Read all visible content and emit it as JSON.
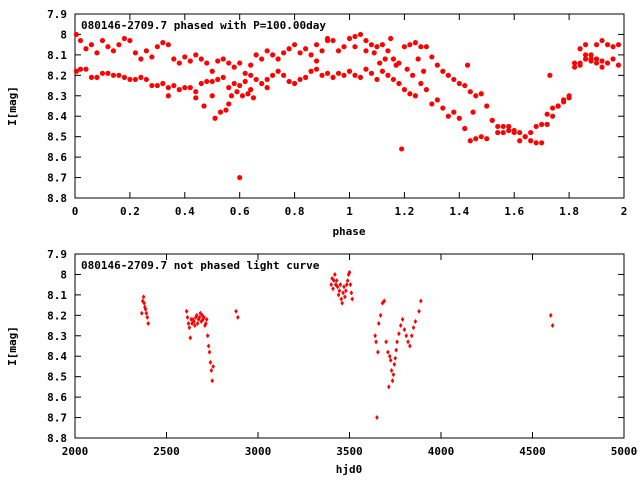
{
  "colors": {
    "marker": "#ff0000",
    "axis": "#000000"
  },
  "chart_data": [
    {
      "type": "scatter",
      "title": "080146-2709.7 phased with P=100.00day",
      "xlabel": "phase",
      "ylabel": "I[mag]",
      "xlim": [
        0,
        2
      ],
      "ylim": [
        7.9,
        8.8
      ],
      "y_inverted": true,
      "grid": false,
      "marker": "filled-circle",
      "x_ticks": [
        "0",
        "0.2",
        "0.4",
        "0.6",
        "0.8",
        "1",
        "1.2",
        "1.4",
        "1.6",
        "1.8",
        "2"
      ],
      "y_ticks": [
        "7.9",
        "8",
        "8.1",
        "8.2",
        "8.3",
        "8.4",
        "8.5",
        "8.6",
        "8.7",
        "8.8"
      ],
      "points": [
        [
          0.005,
          8.18
        ],
        [
          0.02,
          8.17
        ],
        [
          0.04,
          8.17
        ],
        [
          0.06,
          8.21
        ],
        [
          0.08,
          8.21
        ],
        [
          0.1,
          8.19
        ],
        [
          0.12,
          8.19
        ],
        [
          0.14,
          8.2
        ],
        [
          0.16,
          8.2
        ],
        [
          0.18,
          8.21
        ],
        [
          0.2,
          8.22
        ],
        [
          0.22,
          8.22
        ],
        [
          0.24,
          8.21
        ],
        [
          0.26,
          8.22
        ],
        [
          0.28,
          8.25
        ],
        [
          0.3,
          8.25
        ],
        [
          0.32,
          8.24
        ],
        [
          0.34,
          8.26
        ],
        [
          0.36,
          8.25
        ],
        [
          0.38,
          8.27
        ],
        [
          0.4,
          8.26
        ],
        [
          0.42,
          8.26
        ],
        [
          0.44,
          8.28
        ],
        [
          0.46,
          8.24
        ],
        [
          0.48,
          8.23
        ],
        [
          0.5,
          8.23
        ],
        [
          0.52,
          8.22
        ],
        [
          0.54,
          8.21
        ],
        [
          0.56,
          8.26
        ],
        [
          0.58,
          8.24
        ],
        [
          0.6,
          8.25
        ],
        [
          0.62,
          8.23
        ],
        [
          0.64,
          8.2
        ],
        [
          0.66,
          8.22
        ],
        [
          0.68,
          8.24
        ],
        [
          0.7,
          8.26
        ],
        [
          0.72,
          8.2
        ],
        [
          0.74,
          8.18
        ],
        [
          0.76,
          8.2
        ],
        [
          0.78,
          8.23
        ],
        [
          0.8,
          8.24
        ],
        [
          0.82,
          8.22
        ],
        [
          0.84,
          8.21
        ],
        [
          0.86,
          8.18
        ],
        [
          0.88,
          8.17
        ],
        [
          0.9,
          8.2
        ],
        [
          0.92,
          8.19
        ],
        [
          0.94,
          8.21
        ],
        [
          0.96,
          8.19
        ],
        [
          0.98,
          8.2
        ],
        [
          0.005,
          8.0
        ],
        [
          0.02,
          8.03
        ],
        [
          0.04,
          8.07
        ],
        [
          0.06,
          8.05
        ],
        [
          0.08,
          8.09
        ],
        [
          0.1,
          8.03
        ],
        [
          0.12,
          8.06
        ],
        [
          0.14,
          8.08
        ],
        [
          0.16,
          8.05
        ],
        [
          0.18,
          8.02
        ],
        [
          0.2,
          8.03
        ],
        [
          0.22,
          8.09
        ],
        [
          0.24,
          8.12
        ],
        [
          0.26,
          8.08
        ],
        [
          0.28,
          8.11
        ],
        [
          0.3,
          8.06
        ],
        [
          0.32,
          8.04
        ],
        [
          0.34,
          8.05
        ],
        [
          0.36,
          8.12
        ],
        [
          0.38,
          8.14
        ],
        [
          0.4,
          8.11
        ],
        [
          0.42,
          8.13
        ],
        [
          0.44,
          8.1
        ],
        [
          0.46,
          8.12
        ],
        [
          0.48,
          8.14
        ],
        [
          0.5,
          8.18
        ],
        [
          0.52,
          8.13
        ],
        [
          0.54,
          8.12
        ],
        [
          0.56,
          8.14
        ],
        [
          0.58,
          8.16
        ],
        [
          0.6,
          8.14
        ],
        [
          0.62,
          8.19
        ],
        [
          0.64,
          8.15
        ],
        [
          0.66,
          8.1
        ],
        [
          0.68,
          8.12
        ],
        [
          0.7,
          8.08
        ],
        [
          0.72,
          8.1
        ],
        [
          0.74,
          8.12
        ],
        [
          0.76,
          8.09
        ],
        [
          0.78,
          8.07
        ],
        [
          0.8,
          8.05
        ],
        [
          0.82,
          8.09
        ],
        [
          0.84,
          8.07
        ],
        [
          0.86,
          8.1
        ],
        [
          0.88,
          8.05
        ],
        [
          0.9,
          8.08
        ],
        [
          0.92,
          8.03
        ],
        [
          0.94,
          8.03
        ],
        [
          0.96,
          8.08
        ],
        [
          0.98,
          8.06
        ],
        [
          0.44,
          8.31
        ],
        [
          0.47,
          8.35
        ],
        [
          0.5,
          8.3
        ],
        [
          0.51,
          8.41
        ],
        [
          0.53,
          8.38
        ],
        [
          0.55,
          8.37
        ],
        [
          0.56,
          8.34
        ],
        [
          0.57,
          8.3
        ],
        [
          0.59,
          8.28
        ],
        [
          0.6,
          8.7
        ],
        [
          0.61,
          8.3
        ],
        [
          0.63,
          8.29
        ],
        [
          0.64,
          8.27
        ],
        [
          0.65,
          8.31
        ],
        [
          0.34,
          8.3
        ],
        [
          1.0,
          8.18
        ],
        [
          1.02,
          8.2
        ],
        [
          1.04,
          8.21
        ],
        [
          1.06,
          8.17
        ],
        [
          1.08,
          8.19
        ],
        [
          1.1,
          8.22
        ],
        [
          1.12,
          8.18
        ],
        [
          1.14,
          8.2
        ],
        [
          1.16,
          8.22
        ],
        [
          1.18,
          8.24
        ],
        [
          1.2,
          8.27
        ],
        [
          1.22,
          8.29
        ],
        [
          1.24,
          8.3
        ],
        [
          1.26,
          8.24
        ],
        [
          1.28,
          8.27
        ],
        [
          1.3,
          8.34
        ],
        [
          1.32,
          8.32
        ],
        [
          1.34,
          8.36
        ],
        [
          1.36,
          8.4
        ],
        [
          1.38,
          8.38
        ],
        [
          1.4,
          8.41
        ],
        [
          1.42,
          8.46
        ],
        [
          1.44,
          8.52
        ],
        [
          1.46,
          8.51
        ],
        [
          1.48,
          8.5
        ],
        [
          1.5,
          8.51
        ],
        [
          1.52,
          8.42
        ],
        [
          1.54,
          8.48
        ],
        [
          1.56,
          8.48
        ],
        [
          1.58,
          8.45
        ],
        [
          1.6,
          8.47
        ],
        [
          1.62,
          8.48
        ],
        [
          1.64,
          8.5
        ],
        [
          1.66,
          8.52
        ],
        [
          1.68,
          8.53
        ],
        [
          1.7,
          8.53
        ],
        [
          1.72,
          8.44
        ],
        [
          1.74,
          8.4
        ],
        [
          1.76,
          8.35
        ],
        [
          1.78,
          8.33
        ],
        [
          1.8,
          8.31
        ],
        [
          1.82,
          8.16
        ],
        [
          1.84,
          8.14
        ],
        [
          1.86,
          8.12
        ],
        [
          1.88,
          8.13
        ],
        [
          1.9,
          8.14
        ],
        [
          1.92,
          8.16
        ],
        [
          1.94,
          8.14
        ],
        [
          1.96,
          8.12
        ],
        [
          1.98,
          8.15
        ],
        [
          1.0,
          8.02
        ],
        [
          1.02,
          8.01
        ],
        [
          1.04,
          8.0
        ],
        [
          1.06,
          8.08
        ],
        [
          1.08,
          8.05
        ],
        [
          1.1,
          8.06
        ],
        [
          1.12,
          8.05
        ],
        [
          1.14,
          8.08
        ],
        [
          1.16,
          8.12
        ],
        [
          1.18,
          8.14
        ],
        [
          1.2,
          8.06
        ],
        [
          1.22,
          8.05
        ],
        [
          1.24,
          8.04
        ],
        [
          1.26,
          8.06
        ],
        [
          1.28,
          8.06
        ],
        [
          1.3,
          8.11
        ],
        [
          1.32,
          8.15
        ],
        [
          1.34,
          8.18
        ],
        [
          1.36,
          8.2
        ],
        [
          1.38,
          8.22
        ],
        [
          1.4,
          8.24
        ],
        [
          1.42,
          8.25
        ],
        [
          1.44,
          8.28
        ],
        [
          1.46,
          8.3
        ],
        [
          1.48,
          8.29
        ],
        [
          1.5,
          8.35
        ],
        [
          1.52,
          8.42
        ],
        [
          1.54,
          8.45
        ],
        [
          1.56,
          8.45
        ],
        [
          1.58,
          8.47
        ],
        [
          1.6,
          8.48
        ],
        [
          1.62,
          8.52
        ],
        [
          1.64,
          8.5
        ],
        [
          1.66,
          8.48
        ],
        [
          1.68,
          8.45
        ],
        [
          1.7,
          8.44
        ],
        [
          1.72,
          8.39
        ],
        [
          1.74,
          8.36
        ],
        [
          1.76,
          8.35
        ],
        [
          1.78,
          8.32
        ],
        [
          1.8,
          8.3
        ],
        [
          1.82,
          8.14
        ],
        [
          1.84,
          8.07
        ],
        [
          1.86,
          8.05
        ],
        [
          1.88,
          8.1
        ],
        [
          1.9,
          8.05
        ],
        [
          1.92,
          8.03
        ],
        [
          1.94,
          8.05
        ],
        [
          1.96,
          8.06
        ],
        [
          1.98,
          8.05
        ],
        [
          1.02,
          8.06
        ],
        [
          1.06,
          8.03
        ],
        [
          1.09,
          8.09
        ],
        [
          1.11,
          8.14
        ],
        [
          1.13,
          8.12
        ],
        [
          1.15,
          8.02
        ],
        [
          1.17,
          8.15
        ],
        [
          1.19,
          8.56
        ],
        [
          1.21,
          8.17
        ],
        [
          1.23,
          8.2
        ],
        [
          1.25,
          8.12
        ],
        [
          1.27,
          8.18
        ],
        [
          1.43,
          8.15
        ],
        [
          1.45,
          8.38
        ],
        [
          1.73,
          8.2
        ],
        [
          1.84,
          8.15
        ],
        [
          1.86,
          8.1
        ],
        [
          1.88,
          8.12
        ],
        [
          1.9,
          8.12
        ],
        [
          1.92,
          8.13
        ],
        [
          0.92,
          8.02
        ],
        [
          0.88,
          8.13
        ],
        [
          0.7,
          8.22
        ]
      ]
    },
    {
      "type": "scatter",
      "title": "080146-2709.7 not phased light curve",
      "xlabel": "hjd0",
      "ylabel": "I[mag]",
      "xlim": [
        2000,
        5000
      ],
      "ylim": [
        7.9,
        8.8
      ],
      "y_inverted": true,
      "grid": false,
      "marker": "small-diamond",
      "x_ticks": [
        "2000",
        "2500",
        "3000",
        "3500",
        "4000",
        "4500",
        "5000"
      ],
      "y_ticks": [
        "7.9",
        "8",
        "8.1",
        "8.2",
        "8.3",
        "8.4",
        "8.5",
        "8.6",
        "8.7",
        "8.8"
      ],
      "points": [
        [
          2365,
          8.19
        ],
        [
          2370,
          8.13
        ],
        [
          2375,
          8.11
        ],
        [
          2378,
          8.14
        ],
        [
          2382,
          8.16
        ],
        [
          2385,
          8.17
        ],
        [
          2390,
          8.19
        ],
        [
          2395,
          8.21
        ],
        [
          2400,
          8.24
        ],
        [
          2610,
          8.18
        ],
        [
          2615,
          8.21
        ],
        [
          2620,
          8.24
        ],
        [
          2625,
          8.26
        ],
        [
          2630,
          8.31
        ],
        [
          2635,
          8.22
        ],
        [
          2640,
          8.24
        ],
        [
          2645,
          8.22
        ],
        [
          2650,
          8.23
        ],
        [
          2655,
          8.25
        ],
        [
          2660,
          8.21
        ],
        [
          2665,
          8.2
        ],
        [
          2670,
          8.24
        ],
        [
          2675,
          8.22
        ],
        [
          2680,
          8.21
        ],
        [
          2685,
          8.19
        ],
        [
          2690,
          8.23
        ],
        [
          2695,
          8.2
        ],
        [
          2700,
          8.22
        ],
        [
          2705,
          8.21
        ],
        [
          2710,
          8.25
        ],
        [
          2715,
          8.24
        ],
        [
          2720,
          8.22
        ],
        [
          2725,
          8.3
        ],
        [
          2730,
          8.35
        ],
        [
          2735,
          8.38
        ],
        [
          2740,
          8.43
        ],
        [
          2745,
          8.47
        ],
        [
          2750,
          8.52
        ],
        [
          2755,
          8.45
        ],
        [
          2880,
          8.18
        ],
        [
          2890,
          8.21
        ],
        [
          3400,
          8.05
        ],
        [
          3405,
          8.02
        ],
        [
          3410,
          8.07
        ],
        [
          3415,
          8.03
        ],
        [
          3420,
          8.0
        ],
        [
          3425,
          8.05
        ],
        [
          3430,
          8.03
        ],
        [
          3435,
          8.06
        ],
        [
          3440,
          8.1
        ],
        [
          3445,
          8.08
        ],
        [
          3450,
          8.05
        ],
        [
          3455,
          8.12
        ],
        [
          3460,
          8.14
        ],
        [
          3465,
          8.09
        ],
        [
          3470,
          8.06
        ],
        [
          3475,
          8.11
        ],
        [
          3480,
          8.08
        ],
        [
          3485,
          8.05
        ],
        [
          3490,
          8.03
        ],
        [
          3495,
          8.0
        ],
        [
          3500,
          7.99
        ],
        [
          3505,
          8.05
        ],
        [
          3510,
          8.09
        ],
        [
          3515,
          8.12
        ],
        [
          3640,
          8.3
        ],
        [
          3645,
          8.33
        ],
        [
          3650,
          8.7
        ],
        [
          3655,
          8.38
        ],
        [
          3660,
          8.24
        ],
        [
          3670,
          8.2
        ],
        [
          3680,
          8.14
        ],
        [
          3690,
          8.13
        ],
        [
          3700,
          8.33
        ],
        [
          3710,
          8.38
        ],
        [
          3715,
          8.55
        ],
        [
          3720,
          8.4
        ],
        [
          3725,
          8.42
        ],
        [
          3730,
          8.47
        ],
        [
          3735,
          8.52
        ],
        [
          3740,
          8.49
        ],
        [
          3745,
          8.44
        ],
        [
          3750,
          8.41
        ],
        [
          3755,
          8.37
        ],
        [
          3760,
          8.33
        ],
        [
          3770,
          8.29
        ],
        [
          3780,
          8.25
        ],
        [
          3790,
          8.22
        ],
        [
          3800,
          8.27
        ],
        [
          3810,
          8.3
        ],
        [
          3820,
          8.33
        ],
        [
          3830,
          8.35
        ],
        [
          3840,
          8.3
        ],
        [
          3850,
          8.26
        ],
        [
          3860,
          8.23
        ],
        [
          3880,
          8.18
        ],
        [
          3890,
          8.13
        ],
        [
          4600,
          8.2
        ],
        [
          4610,
          8.25
        ]
      ]
    }
  ]
}
